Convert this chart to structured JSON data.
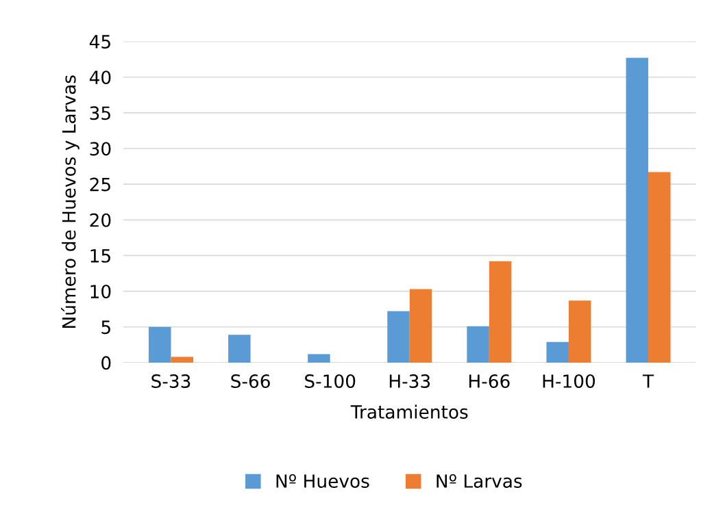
{
  "chart_data": {
    "type": "bar",
    "xlabel": "Tratamientos",
    "ylabel": "Número de Huevos y Larvas",
    "categories": [
      "S-33",
      "S-66",
      "S-100",
      "H-33",
      "H-66",
      "H-100",
      "T"
    ],
    "series": [
      {
        "name": "Nº Huevos",
        "color": "#5b9bd5",
        "values": [
          5,
          3.9,
          1.2,
          7.2,
          5.1,
          2.9,
          42.7
        ]
      },
      {
        "name": "Nº Larvas",
        "color": "#ed7d31",
        "values": [
          0.8,
          0,
          0,
          10.3,
          14.2,
          8.7,
          26.7
        ]
      }
    ],
    "ylim": [
      0,
      45
    ],
    "yticks": [
      0,
      5,
      10,
      15,
      20,
      25,
      30,
      35,
      40,
      45
    ],
    "grid": "y",
    "legend": "bottom"
  }
}
